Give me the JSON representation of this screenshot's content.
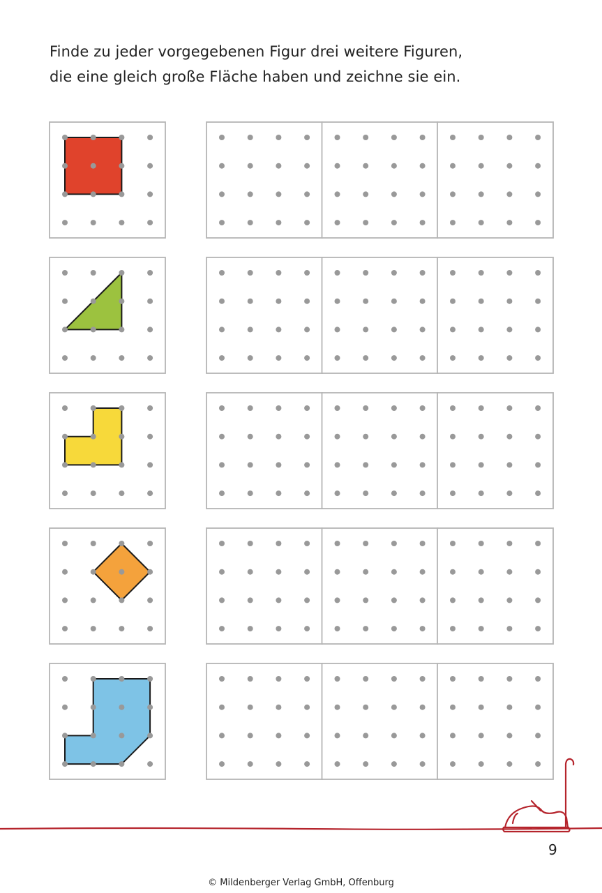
{
  "instruction": {
    "line1": "Finde zu jeder vorgegebenen Figur drei weitere Figuren,",
    "line2": "die eine gleich große Fläche haben und zeichne sie ein."
  },
  "figures": [
    {
      "name": "red-square",
      "color": "#e0432c"
    },
    {
      "name": "green-triangle",
      "color": "#9cc23f"
    },
    {
      "name": "yellow-l-shape",
      "color": "#f7d93a"
    },
    {
      "name": "orange-diamond",
      "color": "#f4a23c"
    },
    {
      "name": "blue-shape",
      "color": "#7ec3e6"
    }
  ],
  "colors": {
    "dot": "#999999",
    "frame": "#b5b5b5",
    "accent_line": "#b5242c"
  },
  "page_number": "9",
  "copyright": "© Mildenberger Verlag GmbH, Offenburg"
}
